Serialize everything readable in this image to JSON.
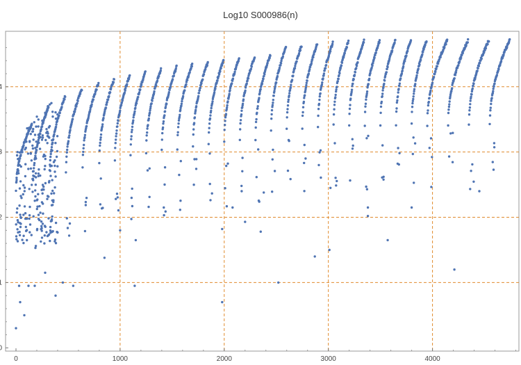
{
  "chart_data": {
    "type": "scatter",
    "title": "Log10 S000986(n)",
    "xlabel": "",
    "ylabel": "",
    "xlim": [
      -100,
      4830
    ],
    "ylim": [
      -0.05,
      4.85
    ],
    "xticks": [
      0,
      1000,
      2000,
      3000,
      4000
    ],
    "yticks": [
      0,
      1,
      2,
      3,
      4
    ],
    "grid_x": [
      1000,
      2000,
      3000,
      4000
    ],
    "grid_y": [
      1,
      2,
      3,
      4
    ],
    "grid": true,
    "grid_style": "dashed",
    "colors": {
      "points": "#4f74b3",
      "grid": "#e08a2c",
      "axis": "#999999"
    },
    "point_count_approx": 2000,
    "x_range": [
      0,
      4750
    ],
    "y_range": [
      0.3,
      4.72
    ],
    "description_of_shape": "Points form many thin rising arcs; the upper envelope rises from about 3.3 near n=100 to about 4.7 near n=4700, and arcs start at multiples of about 150 with sparse outliers below.",
    "arc_start_x": [
      0,
      160,
      320,
      480,
      640,
      800,
      950,
      1100,
      1250,
      1400,
      1550,
      1700,
      1850,
      2000,
      2150,
      2300,
      2450,
      2600,
      2750,
      2900,
      3050,
      3200,
      3350,
      3500,
      3650,
      3800,
      3950,
      4150,
      4350,
      4550
    ],
    "outliers": [
      [
        0,
        0.3
      ],
      [
        40,
        0.7
      ],
      [
        80,
        0.5
      ],
      [
        30,
        0.95
      ],
      [
        120,
        0.95
      ],
      [
        180,
        0.95
      ],
      [
        280,
        1.15
      ],
      [
        380,
        0.8
      ],
      [
        450,
        1.0
      ],
      [
        550,
        0.95
      ],
      [
        850,
        1.38
      ],
      [
        1140,
        0.95
      ],
      [
        1980,
        0.7
      ],
      [
        2520,
        1.0
      ],
      [
        2870,
        1.4
      ],
      [
        4210,
        1.2
      ],
      [
        1000,
        1.8
      ],
      [
        1150,
        1.65
      ],
      [
        1980,
        1.82
      ],
      [
        2200,
        1.93
      ],
      [
        2350,
        1.78
      ],
      [
        3010,
        1.5
      ],
      [
        3570,
        1.65
      ],
      [
        1420,
        2.15
      ],
      [
        2080,
        2.15
      ],
      [
        2380,
        2.38
      ],
      [
        3020,
        2.45
      ],
      [
        3380,
        2.15
      ],
      [
        3380,
        2.02
      ],
      [
        3800,
        2.15
      ],
      [
        4450,
        2.4
      ]
    ]
  }
}
